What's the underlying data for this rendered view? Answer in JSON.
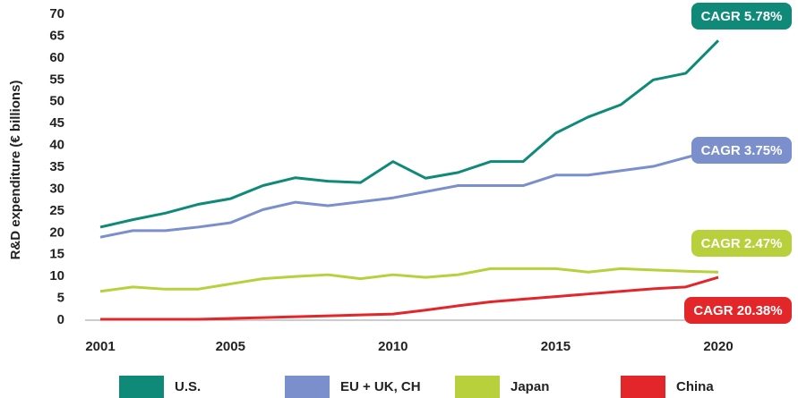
{
  "chart_data": {
    "type": "line",
    "y_label": "R&D expenditure (€ billions)",
    "categories": [
      "2001",
      null,
      null,
      null,
      "2005",
      null,
      null,
      null,
      null,
      "2010",
      null,
      null,
      null,
      null,
      "2015",
      null,
      null,
      null,
      null,
      "2020"
    ],
    "ylim": [
      0,
      70
    ],
    "yticks": [
      0,
      5,
      10,
      15,
      20,
      25,
      30,
      35,
      40,
      45,
      50,
      55,
      60,
      65,
      70
    ],
    "grid": false,
    "legend": "bottom",
    "series": [
      {
        "name": "U.S.",
        "color": "#0f8a78",
        "annotation": "CAGR 5.78%",
        "values": [
          21.3,
          23,
          24.5,
          26.5,
          27.8,
          30.8,
          32.6,
          31.8,
          31.5,
          36.3,
          32.5,
          33.8,
          36.3,
          36.3,
          42.8,
          46.5,
          49.3,
          55,
          56.5,
          64
        ]
      },
      {
        "name": "EU + UK, CH",
        "color": "#7b8fcc",
        "annotation": "CAGR 3.75%",
        "values": [
          19,
          20.5,
          20.5,
          21.3,
          22.3,
          25.3,
          27,
          26.2,
          27.1,
          28,
          29.4,
          30.8,
          30.8,
          30.8,
          33.2,
          33.2,
          34.2,
          35.2,
          37.2,
          39.2
        ]
      },
      {
        "name": "Japan",
        "color": "#b8d03c",
        "annotation": "CAGR 2.47%",
        "values": [
          6.6,
          7.6,
          7.1,
          7.1,
          8.3,
          9.5,
          10,
          10.4,
          9.5,
          10.4,
          9.8,
          10.4,
          11.8,
          11.8,
          11.8,
          11,
          11.8,
          11.5,
          11.2,
          11
        ]
      },
      {
        "name": "China",
        "color": "#e3262a",
        "annotation": "CAGR 20.38%",
        "values": [
          0.2,
          0.2,
          0.2,
          0.2,
          0.4,
          0.6,
          0.8,
          1,
          1.2,
          1.4,
          2.3,
          3.3,
          4.2,
          4.8,
          5.4,
          6,
          6.6,
          7.2,
          7.6,
          9.8
        ]
      }
    ]
  }
}
